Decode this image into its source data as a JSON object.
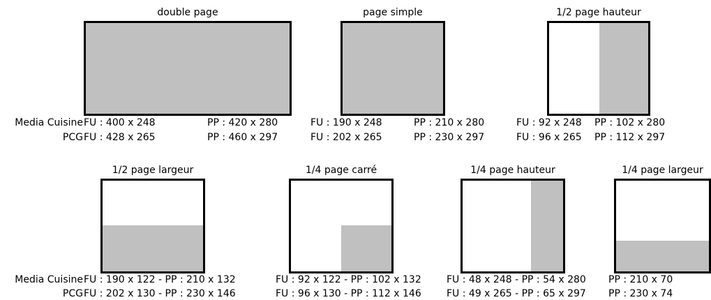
{
  "colors": {
    "fill": "#c0c0c0",
    "frame": "#000000",
    "background": "#ffffff"
  },
  "formats": [
    {
      "title": "double page",
      "media": "Media Cuisine",
      "pcg": "PCG",
      "media_fu": "FU : 400 x 248",
      "media_pp": "PP : 420 x 280",
      "pcg_fu": "FU : 428 x 265",
      "pcg_pp": "PP : 460 x 297"
    },
    {
      "title": "page simple",
      "media_fu": "FU : 190 x 248",
      "media_pp": "PP : 210 x 280",
      "pcg_fu": "FU : 202 x 265",
      "pcg_pp": "PP : 230 x 297"
    },
    {
      "title": "1/2 page  hauteur",
      "media_fu": "FU : 92 x 248",
      "media_pp": "PP : 102 x 280",
      "pcg_fu": "FU : 96 x 265",
      "pcg_pp": "PP : 112 x 297"
    },
    {
      "title": "1/2 page largeur",
      "media": "Media Cuisine",
      "pcg": "PCG",
      "media_line": "FU : 190 x 122 - PP : 210 x 132",
      "pcg_line": "FU : 202 x 130 - PP : 230 x 146"
    },
    {
      "title": "1/4 page carré",
      "media_line": "FU : 92 x 122 - PP : 102 x 132",
      "pcg_line": "FU : 96 x 130 - PP : 112 x 146"
    },
    {
      "title": "1/4 page hauteur",
      "media_line": "FU : 48 x 248 - PP : 54 x 280",
      "pcg_line": "FU : 49 x 265 - PP : 65 x 297"
    },
    {
      "title": "1/4 page largeur",
      "media_line": "PP : 210 x 70",
      "pcg_line": "PP : 230 x 74"
    }
  ]
}
